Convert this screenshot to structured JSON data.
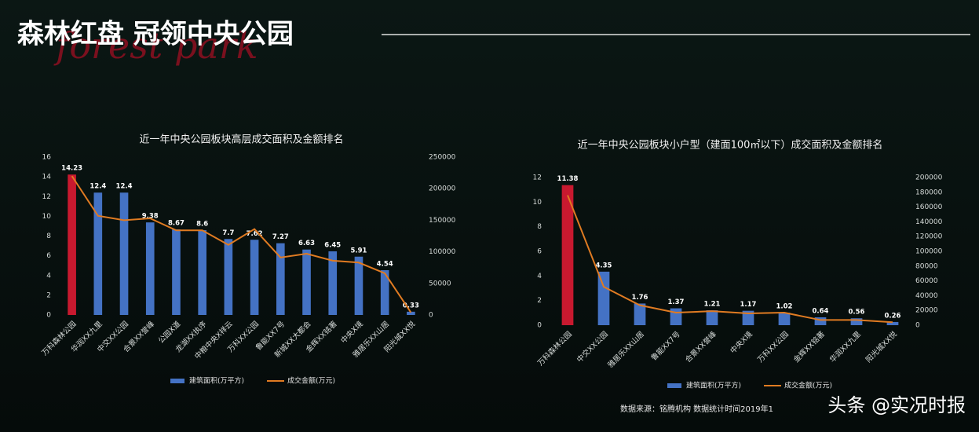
{
  "header": {
    "title": "森林红盘  冠领中央公园",
    "subtitle": "forest park"
  },
  "chart_data": [
    {
      "type": "bar-line",
      "title": "近一年中央公园板块高层成交面积及金额排名",
      "categories": [
        "万科森林公园",
        "华润XX九里",
        "中交XX公园",
        "合景XX誉峰",
        "公园X道",
        "龙湖XX执序",
        "中粮中央X祥云",
        "万科XX公园",
        "鲁能XX7号",
        "新城XX大都会",
        "金辉XX铭著",
        "中央X境",
        "雅居乐XX山居",
        "阳光城XX悦"
      ],
      "series": [
        {
          "name": "建筑面积(万平方)",
          "color": "#4472c4",
          "colors": [
            "#c8192f",
            "#4472c4",
            "#4472c4",
            "#4472c4",
            "#4472c4",
            "#4472c4",
            "#4472c4",
            "#4472c4",
            "#4472c4",
            "#4472c4",
            "#4472c4",
            "#4472c4",
            "#4472c4",
            "#4472c4"
          ],
          "values": [
            14.23,
            12.4,
            12.4,
            9.38,
            8.67,
            8.6,
            7.7,
            7.62,
            7.27,
            6.63,
            6.45,
            5.91,
            4.54,
            0.33
          ]
        },
        {
          "name": "成交金额(万元)",
          "color": "#e07b22",
          "axis": "y2",
          "values": [
            220000,
            157000,
            150000,
            153000,
            134000,
            134000,
            111000,
            136000,
            91000,
            97000,
            86000,
            83000,
            66000,
            4000
          ]
        }
      ],
      "ylim": [
        0,
        16
      ],
      "yticks": [
        0,
        2,
        4,
        6,
        8,
        10,
        12,
        14,
        16
      ],
      "y2lim": [
        0,
        250000
      ],
      "y2ticks": [
        0,
        50000,
        100000,
        150000,
        200000,
        250000
      ]
    },
    {
      "type": "bar-line",
      "title": "近一年中央公园板块小户型（建面100㎡以下）成交面积及金额排名",
      "categories": [
        "万科森林公园",
        "中交XX公园",
        "雅居乐XX山居",
        "鲁能XX7号",
        "合景XX誉峰",
        "中央X境",
        "万科XX公园",
        "金辉XX铭著",
        "华润XX九里",
        "阳光城XX悦"
      ],
      "series": [
        {
          "name": "建筑面积(万平方)",
          "color": "#4472c4",
          "colors": [
            "#c8192f",
            "#4472c4",
            "#4472c4",
            "#4472c4",
            "#4472c4",
            "#4472c4",
            "#4472c4",
            "#4472c4",
            "#4472c4",
            "#4472c4"
          ],
          "values": [
            11.38,
            4.35,
            1.76,
            1.37,
            1.21,
            1.17,
            1.02,
            0.64,
            0.56,
            0.26
          ]
        },
        {
          "name": "成交金额(万元)",
          "color": "#e07b22",
          "axis": "y2",
          "values": [
            176000,
            52000,
            27000,
            17000,
            19000,
            16000,
            17000,
            7000,
            7000,
            4000
          ]
        }
      ],
      "ylim": [
        0,
        12
      ],
      "yticks": [
        0,
        2,
        4,
        6,
        8,
        10,
        12
      ],
      "y2lim": [
        0,
        200000
      ],
      "y2ticks": [
        0,
        20000,
        40000,
        60000,
        80000,
        100000,
        120000,
        140000,
        160000,
        180000,
        200000
      ]
    }
  ],
  "footer": {
    "source": "数据来源：铭腾机构    数据统计时间2019年1"
  },
  "watermark": "头条 @实况时报"
}
